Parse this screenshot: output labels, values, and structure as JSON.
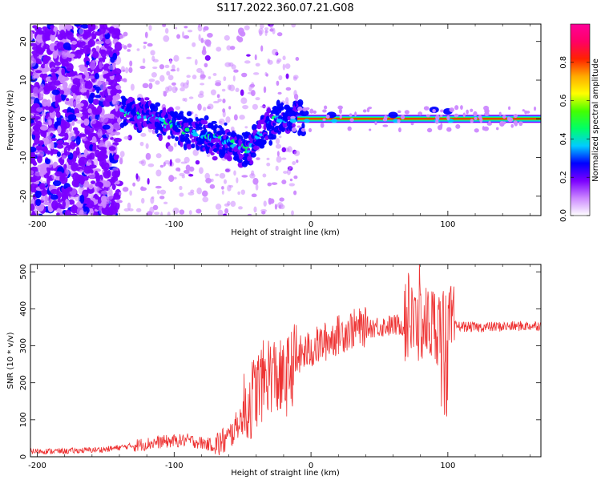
{
  "title": "S117.2022.360.07.21.G08",
  "colors": {
    "snr_line": "#ee3333",
    "axis": "#000000",
    "background": "#ffffff"
  },
  "chart_data": [
    {
      "type": "heatmap",
      "xlabel": "Height of straight line (km)",
      "ylabel": "Frequency (Hz)",
      "xlim": [
        -205,
        168
      ],
      "ylim": [
        -25,
        24.5
      ],
      "x_ticks": [
        -200,
        -100,
        0,
        100
      ],
      "y_ticks": [
        -20,
        -10,
        0,
        10,
        20
      ],
      "colorbar": {
        "label": "Normalized spectral amplitude",
        "range": [
          0,
          1
        ],
        "ticks": [
          "0.0",
          "0.2",
          "0.4",
          "0.6",
          "0.8"
        ],
        "colormap": [
          "#ffffff",
          "#cc88ff",
          "#7b00ff",
          "#0000ff",
          "#00ccff",
          "#00ff66",
          "#44ff00",
          "#ffff00",
          "#ffaa00",
          "#ff2200",
          "#ff0066",
          "#ff0099"
        ]
      },
      "ridge": {
        "x": [
          -135,
          -120,
          -100,
          -80,
          -65,
          -55,
          -45,
          -35,
          -25,
          -15,
          -5,
          0,
          20,
          60,
          100,
          168
        ],
        "y": [
          2,
          1,
          -2,
          -4,
          -5,
          -7,
          -8,
          -3,
          0,
          0.5,
          0.5,
          0.2,
          0,
          0,
          0,
          0
        ]
      },
      "noise_region_x": [
        -205,
        -140
      ],
      "line_region_x": [
        -10,
        168
      ]
    },
    {
      "type": "line",
      "xlabel": "Height of straight line (km)",
      "ylabel": "SNR (10 * v/v)",
      "xlim": [
        -205,
        168
      ],
      "ylim": [
        0,
        520
      ],
      "x_ticks": [
        -200,
        -100,
        0,
        100
      ],
      "y_ticks": [
        0,
        100,
        200,
        300,
        400,
        500
      ],
      "series": [
        {
          "x": [
            -205,
            -180,
            -150,
            -130,
            -110,
            -90,
            -70,
            -60,
            -50,
            -40,
            -30,
            -20,
            -10,
            0,
            10,
            20,
            30,
            40,
            60,
            80,
            100,
            120,
            140,
            168
          ],
          "y": [
            15,
            15,
            20,
            30,
            40,
            45,
            30,
            50,
            110,
            180,
            230,
            200,
            270,
            290,
            310,
            330,
            345,
            350,
            355,
            360,
            355,
            350,
            352,
            355
          ]
        }
      ]
    }
  ]
}
